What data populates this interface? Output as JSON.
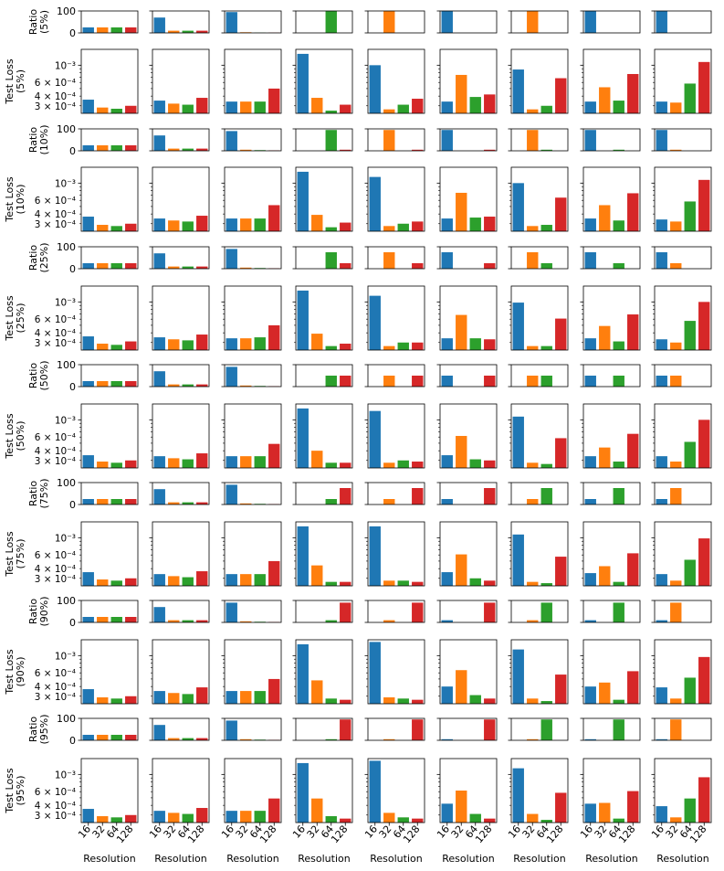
{
  "chart_data": {
    "type": "bar",
    "layout": "grid of 7 row pairs (Ratio + Test Loss) by 9 columns",
    "categories": [
      "16",
      "32",
      "64",
      "128"
    ],
    "colors": [
      "#1f77b4",
      "#ff7f0e",
      "#2ca02c",
      "#d62728"
    ],
    "xlabel": "Resolution",
    "ratio_axis": {
      "scale": "linear",
      "ylim": [
        0,
        100
      ],
      "yticks": [
        0,
        100
      ],
      "ytick_labels": [
        "0",
        "100"
      ]
    },
    "loss_axis": {
      "scale": "log",
      "ylim": [
        0.00024,
        0.0016
      ],
      "yticks": [
        0.0003,
        0.0004,
        0.0006,
        0.001
      ],
      "ytick_labels": [
        "3 × 10⁻⁴",
        "4 × 10⁻⁴",
        "6 × 10⁻⁴",
        "10⁻³"
      ]
    },
    "rows": [
      {
        "fraction": "5%",
        "ratio_ylabel": [
          "Ratio",
          "(5%)"
        ],
        "loss_ylabel": [
          "Test Loss",
          "(5%)"
        ],
        "ratio": [
          [
            25,
            25,
            25,
            25
          ],
          [
            70,
            10,
            10,
            10
          ],
          [
            95,
            3,
            1,
            1
          ],
          [
            0,
            0,
            100,
            0
          ],
          [
            0,
            100,
            0,
            0
          ],
          [
            100,
            0,
            0,
            0
          ],
          [
            0,
            100,
            0,
            0
          ],
          [
            100,
            0,
            0,
            0
          ],
          [
            100,
            0,
            0,
            0
          ]
        ],
        "loss": [
          [
            0.00036,
            0.000285,
            0.000275,
            0.0003
          ],
          [
            0.00035,
            0.00032,
            0.00031,
            0.00038
          ],
          [
            0.00034,
            0.00034,
            0.00034,
            0.0005
          ],
          [
            0.0014,
            0.00038,
            0.00026,
            0.00031
          ],
          [
            0.001,
            0.00027,
            0.00031,
            0.00037
          ],
          [
            0.00034,
            0.00075,
            0.00039,
            0.00042
          ],
          [
            0.00088,
            0.00027,
            0.0003,
            0.00068
          ],
          [
            0.00034,
            0.00052,
            0.00035,
            0.00077
          ],
          [
            0.00034,
            0.00033,
            0.00058,
            0.0011
          ]
        ]
      },
      {
        "fraction": "10%",
        "ratio_ylabel": [
          "Ratio",
          "(10%)"
        ],
        "loss_ylabel": [
          "Test Loss",
          "(10%)"
        ],
        "ratio": [
          [
            25,
            25,
            25,
            25
          ],
          [
            70,
            10,
            10,
            10
          ],
          [
            90,
            5,
            3,
            2
          ],
          [
            0,
            0,
            95,
            5
          ],
          [
            0,
            95,
            0,
            5
          ],
          [
            95,
            0,
            0,
            5
          ],
          [
            0,
            95,
            5,
            0
          ],
          [
            95,
            0,
            5,
            0
          ],
          [
            95,
            5,
            0,
            0
          ]
        ],
        "loss": [
          [
            0.00037,
            0.00029,
            0.00028,
            0.0003
          ],
          [
            0.00035,
            0.00033,
            0.00032,
            0.00038
          ],
          [
            0.00035,
            0.00035,
            0.00035,
            0.00052
          ],
          [
            0.0014,
            0.00039,
            0.00027,
            0.00031
          ],
          [
            0.0012,
            0.00028,
            0.0003,
            0.00032
          ],
          [
            0.00035,
            0.00075,
            0.00036,
            0.00037
          ],
          [
            0.001,
            0.00028,
            0.00029,
            0.00065
          ],
          [
            0.00035,
            0.00052,
            0.00033,
            0.00074
          ],
          [
            0.00034,
            0.00032,
            0.00058,
            0.0011
          ]
        ]
      },
      {
        "fraction": "25%",
        "ratio_ylabel": [
          "Ratio",
          "(25%)"
        ],
        "loss_ylabel": [
          "Test Loss",
          "(25%)"
        ],
        "ratio": [
          [
            25,
            25,
            25,
            25
          ],
          [
            70,
            10,
            10,
            10
          ],
          [
            90,
            5,
            3,
            2
          ],
          [
            0,
            0,
            75,
            25
          ],
          [
            0,
            75,
            0,
            25
          ],
          [
            75,
            0,
            0,
            25
          ],
          [
            0,
            75,
            25,
            0
          ],
          [
            75,
            0,
            25,
            0
          ],
          [
            75,
            25,
            0,
            0
          ]
        ],
        "loss": [
          [
            0.00036,
            0.00029,
            0.00028,
            0.00031
          ],
          [
            0.00035,
            0.00033,
            0.00032,
            0.00038
          ],
          [
            0.00034,
            0.00034,
            0.00035,
            0.0005
          ],
          [
            0.0014,
            0.00039,
            0.00027,
            0.00029
          ],
          [
            0.0012,
            0.00027,
            0.0003,
            0.0003
          ],
          [
            0.00034,
            0.00068,
            0.00034,
            0.00033
          ],
          [
            0.00098,
            0.00027,
            0.00027,
            0.00061
          ],
          [
            0.00034,
            0.00049,
            0.00031,
            0.00069
          ],
          [
            0.00033,
            0.0003,
            0.00057,
            0.001
          ]
        ]
      },
      {
        "fraction": "50%",
        "ratio_ylabel": [
          "Ratio",
          "(50%)"
        ],
        "loss_ylabel": [
          "Test Loss",
          "(50%)"
        ],
        "ratio": [
          [
            25,
            25,
            25,
            25
          ],
          [
            70,
            10,
            10,
            10
          ],
          [
            90,
            5,
            3,
            2
          ],
          [
            0,
            0,
            50,
            50
          ],
          [
            0,
            50,
            0,
            50
          ],
          [
            50,
            0,
            0,
            50
          ],
          [
            0,
            50,
            50,
            0
          ],
          [
            50,
            0,
            50,
            0
          ],
          [
            50,
            50,
            0,
            0
          ]
        ],
        "loss": [
          [
            0.00035,
            0.00029,
            0.00028,
            0.0003
          ],
          [
            0.00034,
            0.00032,
            0.00031,
            0.00037
          ],
          [
            0.00034,
            0.00034,
            0.00034,
            0.00049
          ],
          [
            0.0014,
            0.0004,
            0.00028,
            0.00028
          ],
          [
            0.0013,
            0.00028,
            0.0003,
            0.00029
          ],
          [
            0.00035,
            0.00062,
            0.00031,
            0.0003
          ],
          [
            0.0011,
            0.00028,
            0.00027,
            0.00058
          ],
          [
            0.00034,
            0.00044,
            0.00029,
            0.00066
          ],
          [
            0.00034,
            0.00029,
            0.00052,
            0.001
          ]
        ]
      },
      {
        "fraction": "75%",
        "ratio_ylabel": [
          "Ratio",
          "(75%)"
        ],
        "loss_ylabel": [
          "Test Loss",
          "(75%)"
        ],
        "ratio": [
          [
            25,
            25,
            25,
            25
          ],
          [
            70,
            10,
            10,
            10
          ],
          [
            90,
            5,
            3,
            2
          ],
          [
            0,
            0,
            25,
            75
          ],
          [
            0,
            25,
            0,
            75
          ],
          [
            25,
            0,
            0,
            75
          ],
          [
            0,
            25,
            75,
            0
          ],
          [
            25,
            0,
            75,
            0
          ],
          [
            25,
            75,
            0,
            0
          ]
        ],
        "loss": [
          [
            0.00036,
            0.00029,
            0.00028,
            0.0003
          ],
          [
            0.00034,
            0.00032,
            0.00031,
            0.00037
          ],
          [
            0.00034,
            0.00034,
            0.00034,
            0.0005
          ],
          [
            0.0014,
            0.00044,
            0.00027,
            0.00027
          ],
          [
            0.0014,
            0.00028,
            0.00028,
            0.00027
          ],
          [
            0.00036,
            0.00061,
            0.0003,
            0.00028
          ],
          [
            0.0011,
            0.00027,
            0.00026,
            0.00057
          ],
          [
            0.00035,
            0.00043,
            0.00027,
            0.00063
          ],
          [
            0.00034,
            0.00028,
            0.00052,
            0.00098
          ]
        ]
      },
      {
        "fraction": "90%",
        "ratio_ylabel": [
          "Ratio",
          "(90%)"
        ],
        "loss_ylabel": [
          "Test Loss",
          "(90%)"
        ],
        "ratio": [
          [
            25,
            25,
            25,
            25
          ],
          [
            70,
            10,
            10,
            10
          ],
          [
            90,
            5,
            3,
            2
          ],
          [
            0,
            0,
            10,
            90
          ],
          [
            0,
            10,
            0,
            90
          ],
          [
            10,
            0,
            0,
            90
          ],
          [
            0,
            10,
            90,
            0
          ],
          [
            10,
            0,
            90,
            0
          ],
          [
            10,
            90,
            0,
            0
          ]
        ],
        "loss": [
          [
            0.00037,
            0.00029,
            0.00028,
            0.0003
          ],
          [
            0.00035,
            0.00033,
            0.00032,
            0.00039
          ],
          [
            0.00035,
            0.00035,
            0.00035,
            0.0005
          ],
          [
            0.0014,
            0.00048,
            0.00028,
            0.00027
          ],
          [
            0.0015,
            0.00029,
            0.00028,
            0.00027
          ],
          [
            0.0004,
            0.00065,
            0.00031,
            0.00028
          ],
          [
            0.0012,
            0.00028,
            0.00026,
            0.00057
          ],
          [
            0.0004,
            0.00045,
            0.00027,
            0.00063
          ],
          [
            0.00039,
            0.00028,
            0.00052,
            0.00096
          ]
        ]
      },
      {
        "fraction": "95%",
        "ratio_ylabel": [
          "Ratio",
          "(95%)"
        ],
        "loss_ylabel": [
          "Test Loss",
          "(95%)"
        ],
        "ratio": [
          [
            25,
            25,
            25,
            25
          ],
          [
            70,
            10,
            10,
            10
          ],
          [
            90,
            5,
            3,
            2
          ],
          [
            0,
            0,
            5,
            95
          ],
          [
            0,
            5,
            0,
            95
          ],
          [
            5,
            0,
            0,
            95
          ],
          [
            0,
            5,
            95,
            0
          ],
          [
            5,
            0,
            95,
            0
          ],
          [
            5,
            95,
            0,
            0
          ]
        ],
        "loss": [
          [
            0.00036,
            0.00029,
            0.00028,
            0.0003
          ],
          [
            0.00034,
            0.00032,
            0.00031,
            0.00037
          ],
          [
            0.00034,
            0.00034,
            0.00034,
            0.00049
          ],
          [
            0.0014,
            0.00049,
            0.00029,
            0.00027
          ],
          [
            0.0015,
            0.00032,
            0.00028,
            0.00027
          ],
          [
            0.00042,
            0.00062,
            0.00031,
            0.00027
          ],
          [
            0.0012,
            0.00031,
            0.00026,
            0.00058
          ],
          [
            0.00042,
            0.00043,
            0.00027,
            0.00061
          ],
          [
            0.00039,
            0.00028,
            0.00049,
            0.00092
          ]
        ]
      }
    ]
  }
}
